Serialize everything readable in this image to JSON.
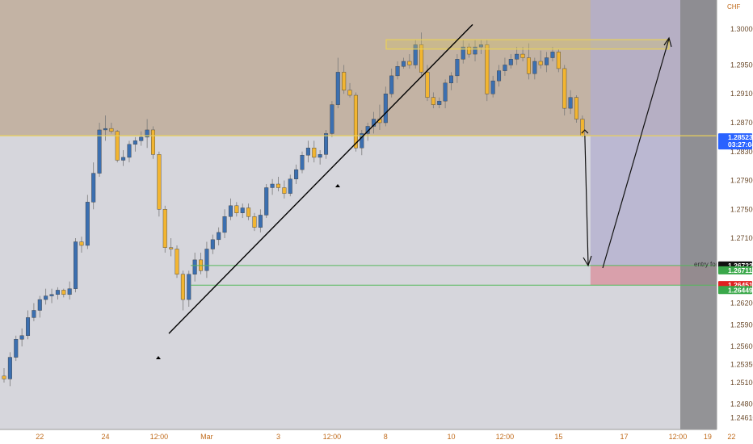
{
  "chart_data": {
    "type": "candlestick",
    "currency": "CHF",
    "ylim": [
      1.2445,
      1.304
    ],
    "y_ticks": [
      "1.30000",
      "1.29500",
      "1.29100",
      "1.28700",
      "1.28300",
      "1.27900",
      "1.27500",
      "1.27100",
      "1.26700",
      "1.26200",
      "1.25900",
      "1.25600",
      "1.25350",
      "1.25100",
      "1.24800",
      "1.24610"
    ],
    "y_tick_values": [
      1.3,
      1.295,
      1.291,
      1.287,
      1.283,
      1.279,
      1.275,
      1.271,
      1.267,
      1.262,
      1.259,
      1.256,
      1.2535,
      1.251,
      1.248,
      1.2461
    ],
    "x_ticks": [
      {
        "label": "22",
        "index": 6
      },
      {
        "label": "24",
        "index": 17
      },
      {
        "label": "12:00",
        "index": 26
      },
      {
        "label": "Mar",
        "index": 34
      },
      {
        "label": "3",
        "index": 46
      },
      {
        "label": "12:00",
        "index": 55
      },
      {
        "label": "8",
        "index": 64
      },
      {
        "label": "10",
        "index": 75
      },
      {
        "label": "12:00",
        "index": 84
      },
      {
        "label": "15",
        "index": 93
      },
      {
        "label": "17",
        "index": 104
      },
      {
        "label": "12:00",
        "index": 113
      },
      {
        "label": "19",
        "index": 118
      },
      {
        "label": "22",
        "index": 122
      }
    ],
    "candles": [
      [
        1.2519,
        1.253,
        1.251,
        1.2515
      ],
      [
        1.2515,
        1.2552,
        1.2505,
        1.2545
      ],
      [
        1.2545,
        1.2575,
        1.254,
        1.257
      ],
      [
        1.257,
        1.2585,
        1.256,
        1.2575
      ],
      [
        1.2575,
        1.261,
        1.257,
        1.26
      ],
      [
        1.26,
        1.262,
        1.2595,
        1.261
      ],
      [
        1.261,
        1.263,
        1.26,
        1.2625
      ],
      [
        1.2625,
        1.264,
        1.2618,
        1.263
      ],
      [
        1.263,
        1.264,
        1.262,
        1.2632
      ],
      [
        1.2632,
        1.2642,
        1.2625,
        1.2638
      ],
      [
        1.2638,
        1.264,
        1.2628,
        1.2632
      ],
      [
        1.2632,
        1.265,
        1.2625,
        1.264
      ],
      [
        1.264,
        1.271,
        1.2635,
        1.2705
      ],
      [
        1.2705,
        1.2712,
        1.269,
        1.27
      ],
      [
        1.27,
        1.277,
        1.2695,
        1.276
      ],
      [
        1.276,
        1.2815,
        1.275,
        1.28
      ],
      [
        1.28,
        1.287,
        1.2795,
        1.286
      ],
      [
        1.286,
        1.288,
        1.2845,
        1.2862
      ],
      [
        1.2862,
        1.287,
        1.2855,
        1.2858
      ],
      [
        1.2858,
        1.286,
        1.2815,
        1.2818
      ],
      [
        1.2818,
        1.2832,
        1.281,
        1.2822
      ],
      [
        1.2822,
        1.2845,
        1.2815,
        1.284
      ],
      [
        1.284,
        1.285,
        1.283,
        1.2845
      ],
      [
        1.2845,
        1.2858,
        1.2838,
        1.285
      ],
      [
        1.285,
        1.2875,
        1.2835,
        1.286
      ],
      [
        1.286,
        1.2865,
        1.282,
        1.2826
      ],
      [
        1.2826,
        1.283,
        1.274,
        1.275
      ],
      [
        1.275,
        1.2755,
        1.269,
        1.2697
      ],
      [
        1.2697,
        1.271,
        1.2685,
        1.2695
      ],
      [
        1.2695,
        1.27,
        1.2655,
        1.266
      ],
      [
        1.266,
        1.2665,
        1.261,
        1.2625
      ],
      [
        1.2625,
        1.2665,
        1.2615,
        1.266
      ],
      [
        1.266,
        1.269,
        1.265,
        1.268
      ],
      [
        1.268,
        1.269,
        1.266,
        1.2665
      ],
      [
        1.2665,
        1.2705,
        1.2655,
        1.2695
      ],
      [
        1.2695,
        1.2715,
        1.2688,
        1.2708
      ],
      [
        1.2708,
        1.2725,
        1.27,
        1.2718
      ],
      [
        1.2718,
        1.275,
        1.271,
        1.274
      ],
      [
        1.274,
        1.2765,
        1.2735,
        1.2755
      ],
      [
        1.2755,
        1.276,
        1.274,
        1.2745
      ],
      [
        1.2745,
        1.2758,
        1.2738,
        1.2752
      ],
      [
        1.2752,
        1.2758,
        1.2735,
        1.274
      ],
      [
        1.274,
        1.2745,
        1.272,
        1.2725
      ],
      [
        1.2725,
        1.275,
        1.2718,
        1.2742
      ],
      [
        1.2742,
        1.2785,
        1.2738,
        1.278
      ],
      [
        1.278,
        1.2792,
        1.277,
        1.2785
      ],
      [
        1.2785,
        1.2795,
        1.2775,
        1.278
      ],
      [
        1.278,
        1.279,
        1.2765,
        1.2772
      ],
      [
        1.2772,
        1.2798,
        1.2768,
        1.2792
      ],
      [
        1.2792,
        1.2812,
        1.2785,
        1.2805
      ],
      [
        1.2805,
        1.283,
        1.28,
        1.2825
      ],
      [
        1.2825,
        1.2845,
        1.2815,
        1.2835
      ],
      [
        1.2835,
        1.2845,
        1.2815,
        1.2822
      ],
      [
        1.2822,
        1.2832,
        1.2812,
        1.2826
      ],
      [
        1.2826,
        1.286,
        1.282,
        1.2855
      ],
      [
        1.2855,
        1.29,
        1.285,
        1.2895
      ],
      [
        1.2895,
        1.296,
        1.289,
        1.294
      ],
      [
        1.294,
        1.295,
        1.291,
        1.2915
      ],
      [
        1.2915,
        1.2925,
        1.2905,
        1.2908
      ],
      [
        1.2908,
        1.2912,
        1.283,
        1.2835
      ],
      [
        1.2835,
        1.286,
        1.2825,
        1.2855
      ],
      [
        1.2855,
        1.287,
        1.2845,
        1.2865
      ],
      [
        1.2865,
        1.2885,
        1.2855,
        1.2875
      ],
      [
        1.2875,
        1.2895,
        1.286,
        1.287
      ],
      [
        1.287,
        1.292,
        1.2865,
        1.291
      ],
      [
        1.291,
        1.2945,
        1.2905,
        1.2935
      ],
      [
        1.2935,
        1.2955,
        1.293,
        1.2948
      ],
      [
        1.2948,
        1.296,
        1.2945,
        1.2955
      ],
      [
        1.2955,
        1.2965,
        1.2945,
        1.295
      ],
      [
        1.295,
        1.2985,
        1.2945,
        1.2978
      ],
      [
        1.2978,
        1.2995,
        1.2935,
        1.294
      ],
      [
        1.294,
        1.295,
        1.29,
        1.2905
      ],
      [
        1.2905,
        1.2912,
        1.289,
        1.2895
      ],
      [
        1.2895,
        1.2905,
        1.289,
        1.29
      ],
      [
        1.29,
        1.293,
        1.289,
        1.2925
      ],
      [
        1.2925,
        1.294,
        1.2915,
        1.2935
      ],
      [
        1.2935,
        1.2965,
        1.2925,
        1.2958
      ],
      [
        1.2958,
        1.2985,
        1.2952,
        1.2975
      ],
      [
        1.2975,
        1.298,
        1.296,
        1.2965
      ],
      [
        1.2965,
        1.2985,
        1.2955,
        1.2975
      ],
      [
        1.2975,
        1.2985,
        1.2965,
        1.2978
      ],
      [
        1.2978,
        1.2985,
        1.29,
        1.291
      ],
      [
        1.291,
        1.2935,
        1.2905,
        1.2928
      ],
      [
        1.2928,
        1.295,
        1.292,
        1.2942
      ],
      [
        1.2942,
        1.296,
        1.2935,
        1.295
      ],
      [
        1.295,
        1.2965,
        1.2945,
        1.2958
      ],
      [
        1.2958,
        1.2975,
        1.295,
        1.2965
      ],
      [
        1.2965,
        1.2975,
        1.2955,
        1.296
      ],
      [
        1.296,
        1.298,
        1.293,
        1.2938
      ],
      [
        1.2938,
        1.296,
        1.293,
        1.2955
      ],
      [
        1.2955,
        1.297,
        1.2945,
        1.295
      ],
      [
        1.295,
        1.2968,
        1.294,
        1.296
      ],
      [
        1.296,
        1.2975,
        1.2955,
        1.2968
      ],
      [
        1.2968,
        1.2972,
        1.294,
        1.2945
      ],
      [
        1.2945,
        1.295,
        1.288,
        1.289
      ],
      [
        1.289,
        1.2915,
        1.2882,
        1.2905
      ],
      [
        1.2905,
        1.2908,
        1.287,
        1.2875
      ],
      [
        1.2875,
        1.288,
        1.285,
        1.2852
      ]
    ],
    "current_price": {
      "label": "1.28523",
      "time": "03:27:04"
    },
    "levels": [
      {
        "label": "1.26722",
        "color": "#111111"
      },
      {
        "label": "1.26711",
        "color": "#3aa84a"
      },
      {
        "label": "1.26451",
        "color": "#e02020"
      },
      {
        "label": "1.26449",
        "color": "#3aa84a"
      }
    ],
    "annotation": "entry for buy"
  },
  "colors": {
    "bull_body": "#3b6fb0",
    "bear_body": "#f2b531",
    "upper_zone": "#c3b3a4",
    "lower_zone": "#d6d6dc",
    "projection": "#b1aecf",
    "stop_zone": "#d9a0ab",
    "right_band": "#878789",
    "yellow_line": "#e8d05a",
    "green_line": "#55b85c",
    "tag_blue": "#2962ff"
  }
}
